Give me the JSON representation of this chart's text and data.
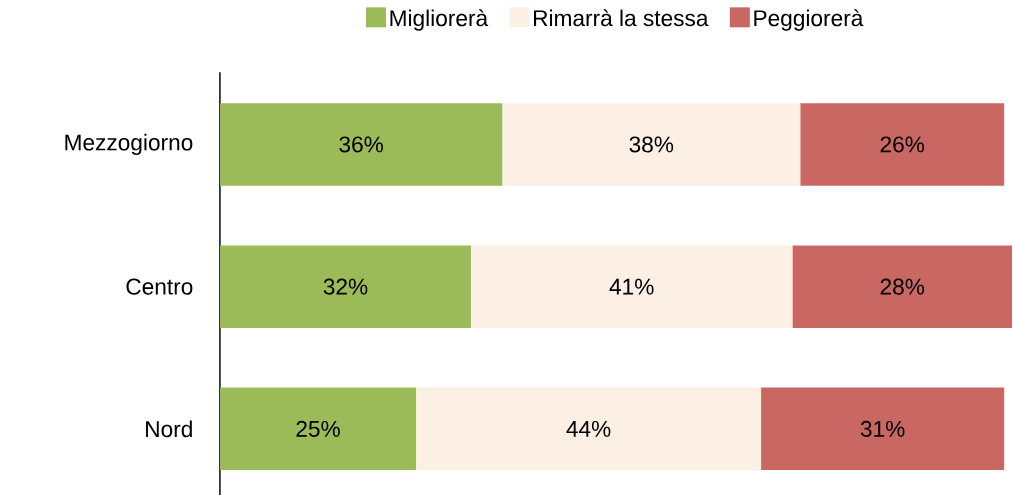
{
  "chart_data": {
    "type": "bar",
    "orientation": "horizontal",
    "stacked": true,
    "categories": [
      "Mezzogiorno",
      "Centro",
      "Nord"
    ],
    "series": [
      {
        "name": "Migliorerà",
        "color": "#9bbb59",
        "values": [
          36,
          32,
          25
        ],
        "value_labels": [
          "36%",
          "32%",
          "25%"
        ]
      },
      {
        "name": "Rimarrà la stessa",
        "color": "#fcefe3",
        "values": [
          38,
          41,
          44
        ],
        "value_labels": [
          "38%",
          "41%",
          "44%"
        ]
      },
      {
        "name": "Peggiorerà",
        "color": "#c96763",
        "values": [
          26,
          28,
          31
        ],
        "value_labels": [
          "26%",
          "28%",
          "31%"
        ]
      }
    ],
    "legend": "top",
    "tick_labels": "y"
  }
}
